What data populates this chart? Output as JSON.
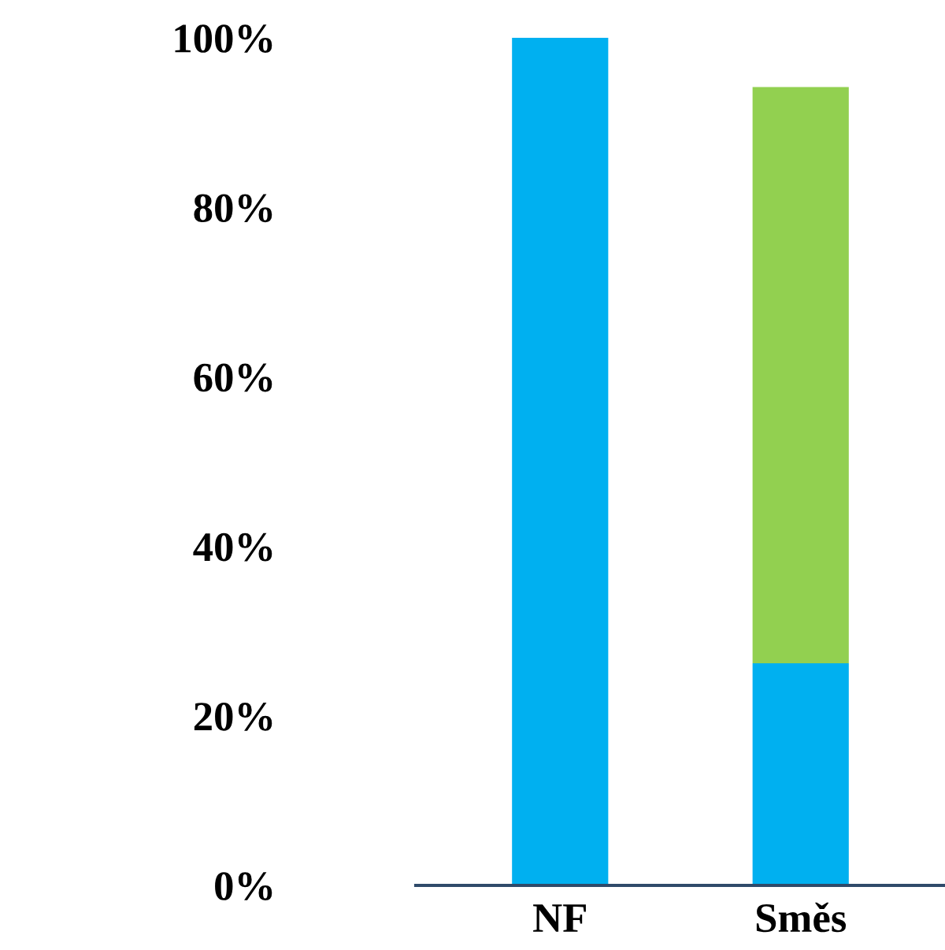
{
  "chart_data": {
    "type": "bar",
    "stacked": true,
    "categories": [
      "NF",
      "Směs"
    ],
    "series": [
      {
        "color": "#00b0f0",
        "values": [
          100,
          26.2
        ]
      },
      {
        "color": "#92d050",
        "values": [
          null,
          68.0
        ]
      }
    ],
    "ylim": [
      0,
      100
    ],
    "yticks": [
      {
        "value": 0,
        "label": "0%"
      },
      {
        "value": 20,
        "label": "20%"
      },
      {
        "value": 40,
        "label": "40%"
      },
      {
        "value": 60,
        "label": "60%"
      },
      {
        "value": 80,
        "label": "80%"
      },
      {
        "value": 100,
        "label": "100%"
      }
    ],
    "grid": false,
    "legend": false
  }
}
